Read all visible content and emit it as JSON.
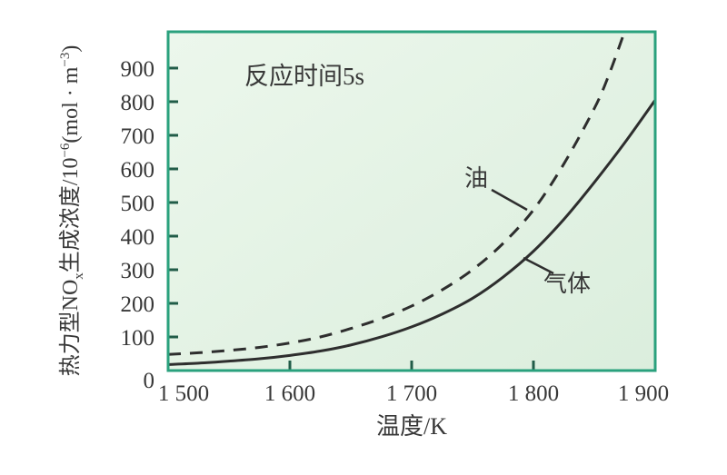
{
  "figure": {
    "plot_bg_light": "#ecf7ec",
    "plot_bg_dark": "#dbeedd",
    "frame_color": "#2aa17d",
    "tick_color": "#215c48",
    "curve_color": "#2e2e2e",
    "text_color": "#383838"
  },
  "ylabel_rich": {
    "p1": "热力型NO",
    "sub": "x",
    "p2": "生成浓度/10",
    "sup1": "−6",
    "p3": "(mol · m",
    "sup2": "−3",
    "p4": ")"
  },
  "chart_data": {
    "type": "line",
    "title": "",
    "annotation": "反应时间5s",
    "xlabel": "温度/K",
    "ylabel": "热力型NOx生成浓度/10⁻⁶(mol·m⁻³)",
    "xlim": [
      1500,
      1900
    ],
    "ylim": [
      0,
      1008
    ],
    "grid": false,
    "legend_position": "inline-labels",
    "xtick_values": [
      1500,
      1600,
      1700,
      1800,
      1900
    ],
    "xtick_labels": [
      "1 500",
      "1 600",
      "1 700",
      "1 800",
      "1 900"
    ],
    "xticks_marked": [
      1600,
      1700,
      1800
    ],
    "ytick_values": [
      0,
      100,
      200,
      300,
      400,
      500,
      600,
      700,
      800,
      900
    ],
    "ytick_labels": [
      "0",
      "100",
      "200",
      "300",
      "400",
      "500",
      "600",
      "700",
      "800",
      "900"
    ],
    "series": [
      {
        "name": "油",
        "style": "dashed",
        "points": [
          [
            1500,
            48
          ],
          [
            1525,
            53
          ],
          [
            1550,
            60
          ],
          [
            1575,
            69
          ],
          [
            1600,
            82
          ],
          [
            1625,
            100
          ],
          [
            1650,
            125
          ],
          [
            1675,
            155
          ],
          [
            1700,
            192
          ],
          [
            1725,
            240
          ],
          [
            1750,
            300
          ],
          [
            1775,
            378
          ],
          [
            1800,
            478
          ],
          [
            1825,
            615
          ],
          [
            1850,
            780
          ],
          [
            1862,
            880
          ],
          [
            1875,
            1010
          ]
        ]
      },
      {
        "name": "气体",
        "style": "solid",
        "points": [
          [
            1500,
            18
          ],
          [
            1525,
            22
          ],
          [
            1550,
            28
          ],
          [
            1575,
            35
          ],
          [
            1600,
            45
          ],
          [
            1625,
            58
          ],
          [
            1650,
            76
          ],
          [
            1675,
            100
          ],
          [
            1700,
            130
          ],
          [
            1725,
            168
          ],
          [
            1750,
            215
          ],
          [
            1775,
            278
          ],
          [
            1800,
            355
          ],
          [
            1825,
            450
          ],
          [
            1850,
            560
          ],
          [
            1875,
            678
          ],
          [
            1900,
            805
          ]
        ]
      }
    ]
  }
}
